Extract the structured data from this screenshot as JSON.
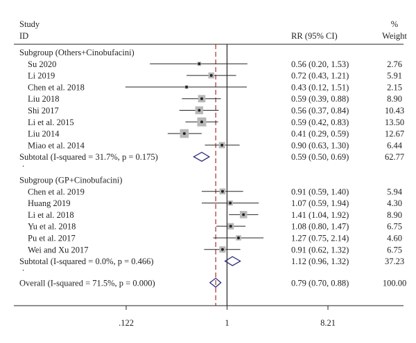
{
  "header": {
    "col1_line1": "Study",
    "col1_line2": "ID",
    "col_rr": "RR (95% CI)",
    "col_weight_line1": "%",
    "col_weight_line2": "Weight"
  },
  "chart_data": {
    "type": "forest",
    "scale": "log",
    "x_ticks": [
      {
        "value": 0.122,
        "label": ".122"
      },
      {
        "value": 1,
        "label": "1"
      },
      {
        "value": 8.21,
        "label": "8.21"
      }
    ],
    "xlim": [
      0.122,
      8.21
    ],
    "reference_line": 1,
    "overall_line": 0.79,
    "subgroups": [
      {
        "label": "Subgroup (Others+Cinobufacini)",
        "studies": [
          {
            "name": "Su 2020",
            "rr": 0.56,
            "lo": 0.2,
            "hi": 1.53,
            "ci_text": "0.56 (0.20, 1.53)",
            "weight": 2.76,
            "weight_text": "2.76"
          },
          {
            "name": "Li 2019",
            "rr": 0.72,
            "lo": 0.43,
            "hi": 1.21,
            "ci_text": "0.72 (0.43, 1.21)",
            "weight": 5.91,
            "weight_text": "5.91"
          },
          {
            "name": "Chen et al. 2018",
            "rr": 0.43,
            "lo": 0.12,
            "hi": 1.51,
            "ci_text": "0.43 (0.12, 1.51)",
            "weight": 2.15,
            "weight_text": "2.15"
          },
          {
            "name": "Liu 2018",
            "rr": 0.59,
            "lo": 0.39,
            "hi": 0.88,
            "ci_text": "0.59 (0.39, 0.88)",
            "weight": 8.9,
            "weight_text": "8.90"
          },
          {
            "name": "Shi 2017",
            "rr": 0.56,
            "lo": 0.37,
            "hi": 0.84,
            "ci_text": "0.56 (0.37, 0.84)",
            "weight": 10.43,
            "weight_text": "10.43"
          },
          {
            "name": "Li et al. 2015",
            "rr": 0.59,
            "lo": 0.42,
            "hi": 0.83,
            "ci_text": "0.59 (0.42, 0.83)",
            "weight": 13.5,
            "weight_text": "13.50"
          },
          {
            "name": "Liu 2014",
            "rr": 0.41,
            "lo": 0.29,
            "hi": 0.59,
            "ci_text": "0.41 (0.29, 0.59)",
            "weight": 12.67,
            "weight_text": "12.67"
          },
          {
            "name": "Miao et al. 2014",
            "rr": 0.9,
            "lo": 0.63,
            "hi": 1.3,
            "ci_text": "0.90 (0.63, 1.30)",
            "weight": 6.44,
            "weight_text": "6.44"
          }
        ],
        "subtotal": {
          "label": "Subtotal  (I-squared = 31.7%, p = 0.175)",
          "rr": 0.59,
          "lo": 0.5,
          "hi": 0.69,
          "ci_text": "0.59 (0.50, 0.69)",
          "weight_text": "62.77"
        },
        "spacer": "."
      },
      {
        "label": "Subgroup (GP+Cinobufacini)",
        "studies": [
          {
            "name": "Chen et al. 2019",
            "rr": 0.91,
            "lo": 0.59,
            "hi": 1.4,
            "ci_text": "0.91 (0.59, 1.40)",
            "weight": 5.94,
            "weight_text": "5.94"
          },
          {
            "name": "Huang 2019",
            "rr": 1.07,
            "lo": 0.59,
            "hi": 1.94,
            "ci_text": "1.07 (0.59, 1.94)",
            "weight": 4.3,
            "weight_text": "4.30"
          },
          {
            "name": "Li et al. 2018",
            "rr": 1.41,
            "lo": 1.04,
            "hi": 1.92,
            "ci_text": "1.41 (1.04, 1.92)",
            "weight": 8.9,
            "weight_text": "8.90"
          },
          {
            "name": "Yu et al. 2018",
            "rr": 1.08,
            "lo": 0.8,
            "hi": 1.47,
            "ci_text": "1.08 (0.80, 1.47)",
            "weight": 6.75,
            "weight_text": "6.75"
          },
          {
            "name": "Pu et al. 2017",
            "rr": 1.27,
            "lo": 0.75,
            "hi": 2.14,
            "ci_text": "1.27 (0.75, 2.14)",
            "weight": 4.6,
            "weight_text": "4.60"
          },
          {
            "name": "Wei and Xu 2017",
            "rr": 0.91,
            "lo": 0.62,
            "hi": 1.32,
            "ci_text": "0.91 (0.62, 1.32)",
            "weight": 6.75,
            "weight_text": "6.75"
          }
        ],
        "subtotal": {
          "label": "Subtotal  (I-squared = 0.0%, p = 0.466)",
          "rr": 1.12,
          "lo": 0.96,
          "hi": 1.32,
          "ci_text": "1.12 (0.96, 1.32)",
          "weight_text": "37.23"
        },
        "spacer": "."
      }
    ],
    "overall": {
      "label": "Overall  (I-squared = 71.5%, p = 0.000)",
      "rr": 0.79,
      "lo": 0.7,
      "hi": 0.88,
      "ci_text": "0.79 (0.70, 0.88)",
      "weight_text": "100.00"
    },
    "colors": {
      "box": "#b8b8b8",
      "diamond": "#2b2b7a",
      "dashed_line": "#a0302a",
      "line": "#222222"
    }
  }
}
